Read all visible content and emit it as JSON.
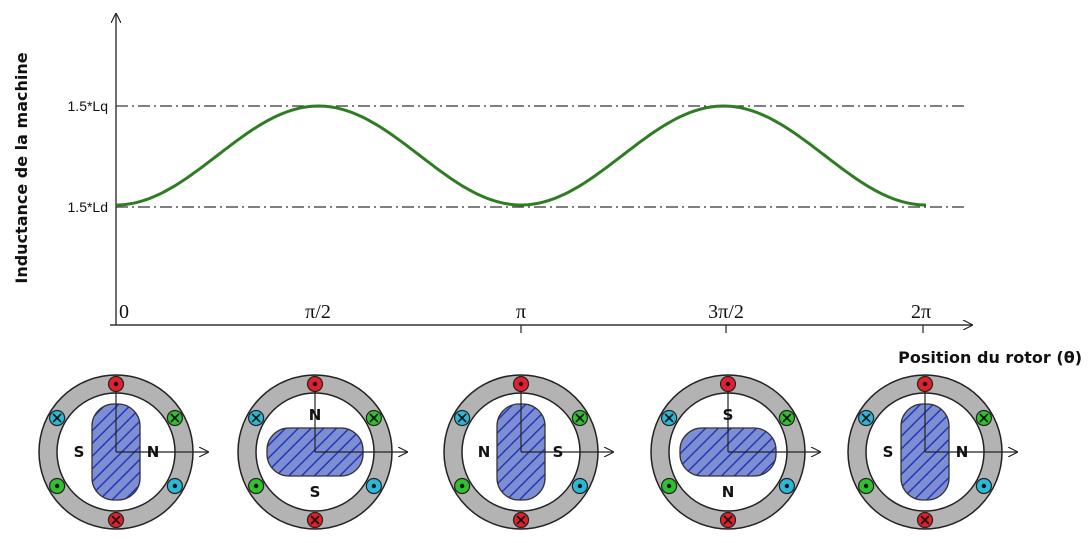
{
  "chart_data": {
    "type": "line",
    "ylabel": "Inductance de la machine",
    "xlabel": "Position du rotor (θ)",
    "x_ticks": [
      "0",
      "π/2",
      "π",
      "3π/2",
      "2π"
    ],
    "y_levels": [
      "1.5*Lq",
      "1.5*Ld"
    ],
    "xlim": [
      0,
      6.2832
    ],
    "ylim": [
      0,
      1
    ],
    "series": [
      {
        "x": [
          0,
          0.3927,
          0.7854,
          1.1781,
          1.5708,
          1.9635,
          2.3562,
          2.7489,
          3.1416,
          3.5343,
          3.927,
          4.3197,
          4.7124,
          5.1051,
          5.4978,
          5.8905,
          6.2832
        ],
        "y": [
          0,
          0.1464,
          0.5,
          0.8536,
          1,
          0.8536,
          0.5,
          0.1464,
          0,
          0.1464,
          0.5,
          0.8536,
          1,
          0.8536,
          0.5,
          0.1464,
          0
        ]
      }
    ],
    "colors": {
      "curve": "#2e7d22",
      "ref_lines": "#333333"
    },
    "grid": false
  },
  "rotors": [
    {
      "theta": "0",
      "rotor": "vertical",
      "pole_left": "S",
      "pole_right": "N"
    },
    {
      "theta": "π/2",
      "rotor": "horizontal",
      "pole_top": "N",
      "pole_bottom": "S"
    },
    {
      "theta": "π",
      "rotor": "vertical",
      "pole_left": "N",
      "pole_right": "S"
    },
    {
      "theta": "3π/2",
      "rotor": "horizontal",
      "pole_top": "S",
      "pole_bottom": "N"
    },
    {
      "theta": "2π",
      "rotor": "vertical",
      "pole_left": "S",
      "pole_right": "N"
    }
  ],
  "conductor_colors": {
    "phase_a": "#e0202a",
    "phase_b": "#2fbf2f",
    "phase_c": "#29b9d6"
  },
  "rotor_color": "#6d7fc8",
  "hatch_color": "#2a3cc0"
}
